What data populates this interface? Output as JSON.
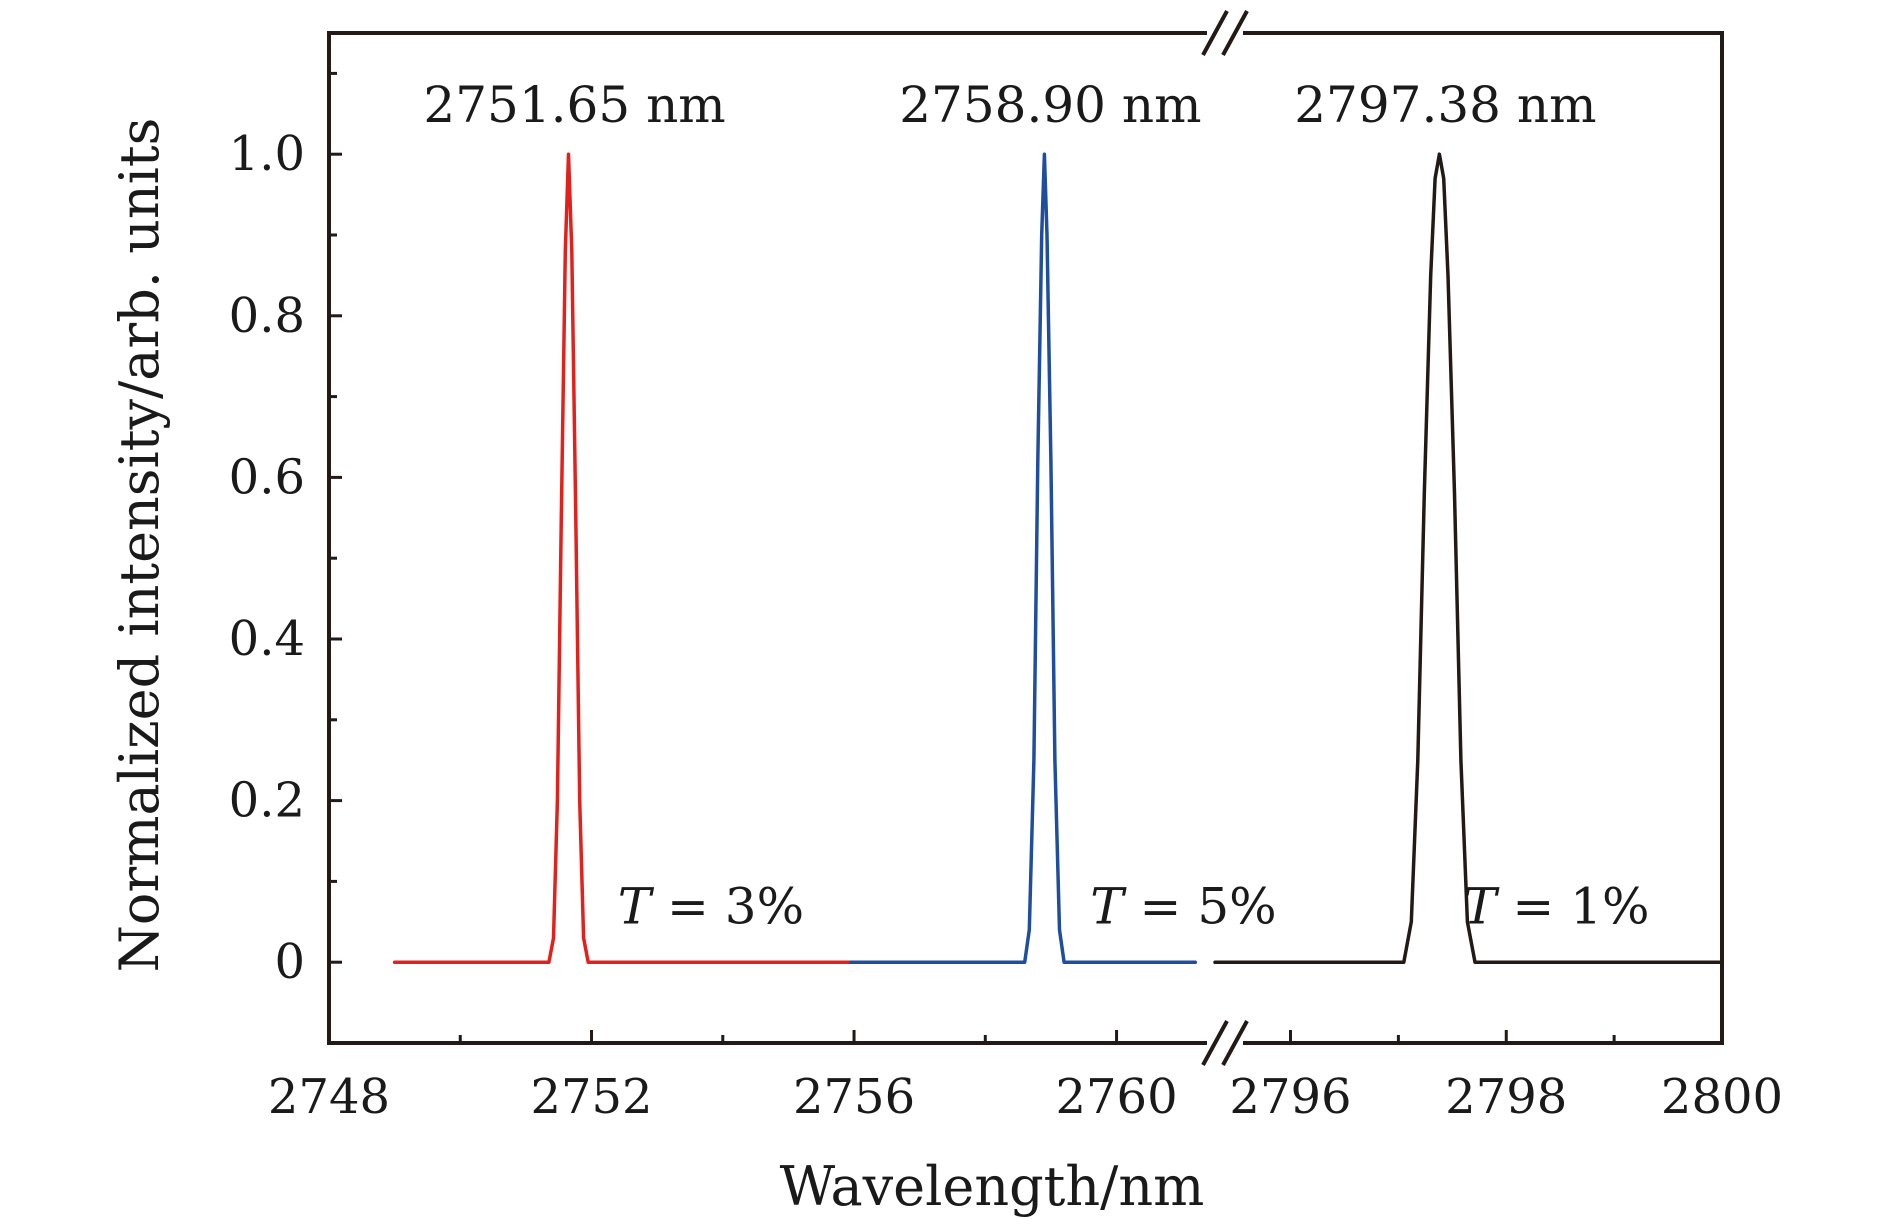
{
  "chart_data": {
    "type": "line",
    "title": "",
    "xlabel": "Wavelength/nm",
    "ylabel": "Normalized intensity/arb. units",
    "ylim": [
      -0.1,
      1.15
    ],
    "grid": false,
    "x_break": true,
    "x_segments": [
      {
        "xlim": [
          2748,
          2761.5
        ],
        "ticks": [
          2748,
          2752,
          2756,
          2760
        ],
        "tick_labels": [
          "2748",
          "2752",
          "2756",
          "2760"
        ]
      },
      {
        "xlim": [
          2795.3,
          2800
        ],
        "ticks": [
          2796,
          2798,
          2800
        ],
        "tick_labels": [
          "2796",
          "2798",
          "2800"
        ]
      }
    ],
    "y_ticks": [
      0,
      0.2,
      0.4,
      0.6,
      0.8,
      1.0
    ],
    "y_tick_labels": [
      "0",
      "0.2",
      "0.4",
      "0.6",
      "0.8",
      "1.0"
    ],
    "series": [
      {
        "name": "T = 3%",
        "color": "#e3211c",
        "segment": 0,
        "x": [
          2749.0,
          2751.35,
          2751.42,
          2751.48,
          2751.54,
          2751.6,
          2751.65,
          2751.7,
          2751.76,
          2751.82,
          2751.88,
          2751.95,
          2755.95
        ],
        "y": [
          0,
          0,
          0.03,
          0.2,
          0.55,
          0.88,
          1.0,
          0.88,
          0.55,
          0.2,
          0.03,
          0,
          0
        ]
      },
      {
        "name": "T = 5%",
        "color": "#1f4e9e",
        "segment": 0,
        "x": [
          2755.95,
          2758.6,
          2758.67,
          2758.74,
          2758.8,
          2758.86,
          2758.9,
          2758.94,
          2759.0,
          2759.06,
          2759.13,
          2759.2,
          2761.2
        ],
        "y": [
          0,
          0,
          0.04,
          0.25,
          0.62,
          0.9,
          1.0,
          0.9,
          0.62,
          0.25,
          0.04,
          0,
          0
        ]
      },
      {
        "name": "T = 1%",
        "color": "#231916",
        "segment": 1,
        "x": [
          2795.3,
          2797.05,
          2797.12,
          2797.18,
          2797.24,
          2797.3,
          2797.34,
          2797.38,
          2797.42,
          2797.46,
          2797.52,
          2797.58,
          2797.64,
          2797.71,
          2800.0
        ],
        "y": [
          0,
          0,
          0.05,
          0.25,
          0.58,
          0.85,
          0.97,
          1.0,
          0.97,
          0.85,
          0.58,
          0.25,
          0.05,
          0,
          0
        ]
      }
    ],
    "peak_labels": [
      {
        "text": "2751.65 nm",
        "x": 2751.65,
        "segment": 0
      },
      {
        "text": "2758.90 nm",
        "x": 2758.9,
        "segment": 0
      },
      {
        "text": "2797.38 nm",
        "x": 2797.38,
        "segment": 1
      }
    ],
    "annotations": [
      {
        "var": "T",
        "rest": "= 3%",
        "x": 2752.4,
        "y": 0.07,
        "segment": 0
      },
      {
        "var": "T",
        "rest": "= 5%",
        "x": 2759.6,
        "y": 0.07,
        "segment": 0
      },
      {
        "var": "T",
        "rest": "= 1%",
        "x": 2797.6,
        "y": 0.07,
        "segment": 1
      }
    ]
  }
}
